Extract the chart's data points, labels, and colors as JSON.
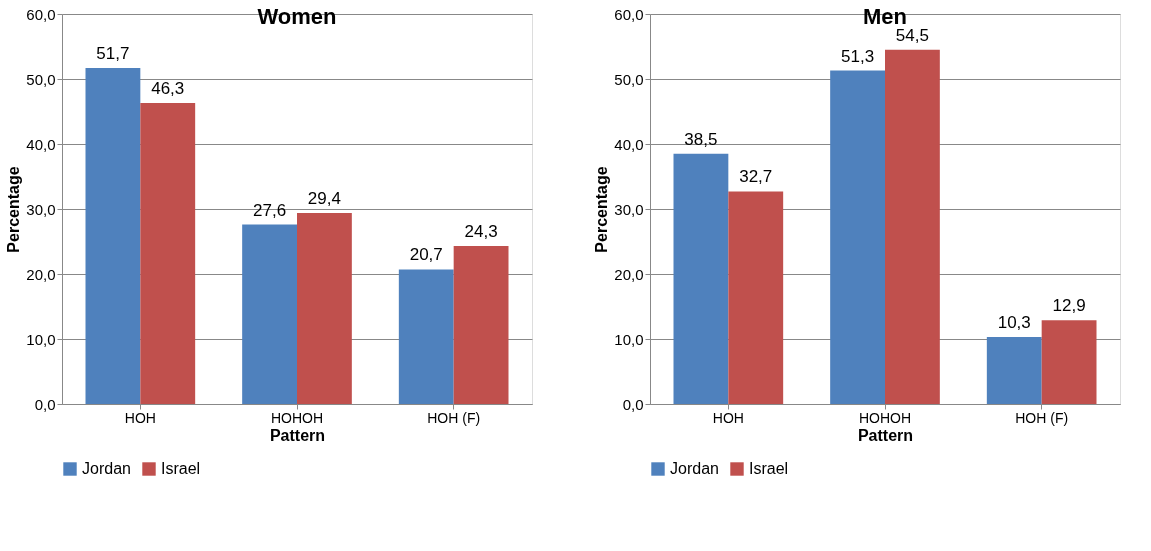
{
  "chart_data": [
    {
      "type": "bar",
      "title": "Women",
      "xlabel": "Pattern",
      "ylabel": "Percentage",
      "categories": [
        "HOH",
        "HOHOH",
        "HOH (F)"
      ],
      "series": [
        {
          "name": "Jordan",
          "color": "#4f81bd",
          "values": [
            51.7,
            27.6,
            20.7
          ],
          "value_labels": [
            "51,7",
            "27,6",
            "20,7"
          ]
        },
        {
          "name": "Israel",
          "color": "#c0504d",
          "values": [
            46.3,
            29.4,
            24.3
          ],
          "value_labels": [
            "46,3",
            "29,4",
            "24,3"
          ]
        }
      ],
      "ylim": [
        0,
        60
      ],
      "yticks": [
        {
          "value": 0,
          "label": "0,0"
        },
        {
          "value": 10,
          "label": "10,0"
        },
        {
          "value": 20,
          "label": "20,0"
        },
        {
          "value": 30,
          "label": "30,0"
        },
        {
          "value": 40,
          "label": "40,0"
        },
        {
          "value": 50,
          "label": "50,0"
        },
        {
          "value": 60,
          "label": "60,0"
        }
      ],
      "grid": "y",
      "legend": "bottom"
    },
    {
      "type": "bar",
      "title": "Men",
      "xlabel": "Pattern",
      "ylabel": "Percentage",
      "categories": [
        "HOH",
        "HOHOH",
        "HOH (F)"
      ],
      "series": [
        {
          "name": "Jordan",
          "color": "#4f81bd",
          "values": [
            38.5,
            51.3,
            10.3
          ],
          "value_labels": [
            "38,5",
            "51,3",
            "10,3"
          ]
        },
        {
          "name": "Israel",
          "color": "#c0504d",
          "values": [
            32.7,
            54.5,
            12.9
          ],
          "value_labels": [
            "32,7",
            "54,5",
            "12,9"
          ]
        }
      ],
      "ylim": [
        0,
        60
      ],
      "yticks": [
        {
          "value": 0,
          "label": "0,0"
        },
        {
          "value": 10,
          "label": "10,0"
        },
        {
          "value": 20,
          "label": "20,0"
        },
        {
          "value": 30,
          "label": "30,0"
        },
        {
          "value": 40,
          "label": "40,0"
        },
        {
          "value": 50,
          "label": "50,0"
        },
        {
          "value": 60,
          "label": "60,0"
        }
      ],
      "grid": "y",
      "legend": "bottom"
    }
  ]
}
